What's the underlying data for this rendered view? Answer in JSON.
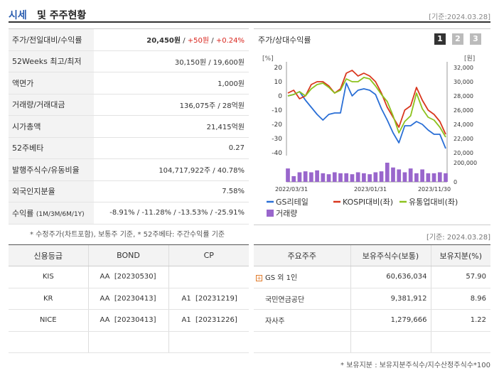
{
  "header": {
    "title_a": "시세",
    "title_b": "및 주주현황",
    "as_of": "[기준:2024.03.28]"
  },
  "summary": [
    {
      "label": "주가/전일대비/수익률",
      "v1": "20,450원",
      "sep1": " / ",
      "v2": "+50원",
      "sep2": " / ",
      "v3": "+0.24%"
    },
    {
      "label": "52Weeks 최고/최저",
      "value": "30,150원 / 19,600원"
    },
    {
      "label": "액면가",
      "value": "1,000원"
    },
    {
      "label": "거래량/거래대금",
      "value": "136,075주 / 28억원"
    },
    {
      "label": "시가총액",
      "value": "21,415억원"
    },
    {
      "label": "52주베타",
      "value": "0.27"
    },
    {
      "label": "발행주식수/유동비율",
      "value": "104,717,922주 / 40.78%"
    },
    {
      "label": "외국인지분율",
      "value": "7.58%"
    },
    {
      "label": "수익률",
      "label_sub": "(1M/3M/6M/1Y)",
      "value": "-8.91% / -11.28% / -13.53% / -25.91%"
    }
  ],
  "summary_note": "* 수정주가(차트포함), 보통주 기준, * 52주베타: 주간수익률 기준",
  "chart_panel": {
    "title": "주가/상대수익률",
    "pages": [
      "1",
      "2",
      "3"
    ]
  },
  "chart_data": {
    "type": "line",
    "left_axis_unit": "[%]",
    "right_axis_unit": "[원]",
    "left_ticks": [
      "20",
      "10",
      "0",
      "-10",
      "-20",
      "-30",
      "-40"
    ],
    "right_ticks": [
      "32,000",
      "30,000",
      "28,000",
      "26,000",
      "24,000",
      "22,000",
      "20,000"
    ],
    "volume_ticks": [
      "200,000",
      "0"
    ],
    "x_labels": [
      "2022/03/31",
      "2023/01/31",
      "2023/11/30"
    ],
    "ylim": [
      -40,
      20
    ],
    "series": [
      {
        "name": "GS리테일",
        "color": "#2a6fd6",
        "values": [
          0,
          1,
          3,
          -3,
          -8,
          -13,
          -17,
          -13,
          -12,
          -12,
          9,
          0,
          4,
          5,
          4,
          1,
          -9,
          -17,
          -26,
          -33,
          -21,
          -21,
          -18,
          -20,
          -24,
          -27,
          -27,
          -37
        ]
      },
      {
        "name": "KOSPI대비(좌)",
        "color": "#d9371e",
        "values": [
          2,
          4,
          -2,
          0,
          8,
          10,
          10,
          7,
          2,
          5,
          16,
          18,
          14,
          16,
          14,
          10,
          2,
          -8,
          -15,
          -22,
          -10,
          -7,
          6,
          -3,
          -10,
          -13,
          -18,
          -27
        ]
      },
      {
        "name": "유통업대비(좌)",
        "color": "#8dc21f",
        "values": [
          0,
          1,
          3,
          0,
          5,
          8,
          9,
          6,
          2,
          4,
          12,
          10,
          10,
          13,
          12,
          7,
          1,
          -4,
          -14,
          -26,
          -18,
          -14,
          2,
          -9,
          -15,
          -17,
          -22,
          -29
        ]
      }
    ],
    "volume": {
      "name": "거래량",
      "color": "#9966cc",
      "values": [
        0.7,
        0.3,
        0.5,
        0.55,
        0.5,
        0.6,
        0.45,
        0.4,
        0.5,
        0.45,
        0.45,
        0.4,
        0.5,
        0.45,
        0.4,
        0.5,
        0.55,
        1.0,
        0.75,
        0.65,
        0.5,
        0.7,
        0.45,
        0.65,
        0.45,
        0.45,
        0.5,
        0.45
      ]
    }
  },
  "credit": {
    "headers": [
      "신용등급",
      "BOND",
      "CP"
    ],
    "rows": [
      [
        "KIS",
        "AA  [20230530]",
        ""
      ],
      [
        "KR",
        "AA  [20230413]",
        "A1  [20231219]"
      ],
      [
        "NICE",
        "AA  [20230413]",
        "A1  [20231226]"
      ]
    ]
  },
  "holders_as_of": "[기준: 2024.03.28]",
  "holders": {
    "headers": [
      "주요주주",
      "보유주식수(보통)",
      "보유지분(%)"
    ],
    "rows": [
      [
        "GS 외 1인",
        "60,636,034",
        "57.90"
      ],
      [
        "국민연금공단",
        "9,381,912",
        "8.96"
      ],
      [
        "자사주",
        "1,279,666",
        "1.22"
      ]
    ]
  },
  "holders_note": "* 보유지분 : 보유지분주식수/지수산정주식수*100"
}
